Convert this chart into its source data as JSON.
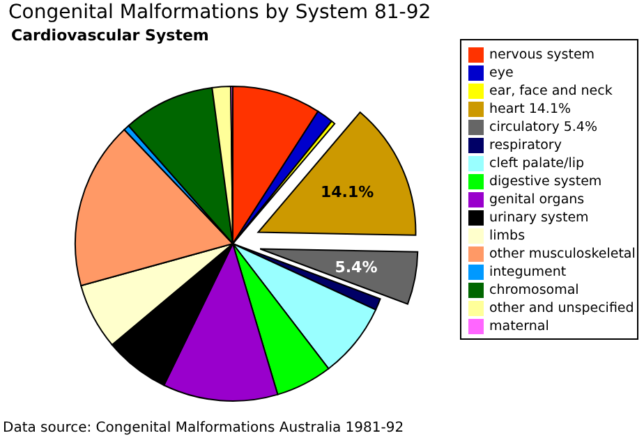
{
  "chart_data": {
    "type": "pie",
    "title": "Congenital Malformations by System 81-92",
    "subtitle": "Cardiovascular System",
    "categories": [
      "nervous system",
      "eye",
      "ear, face and neck",
      "heart  14.1%",
      "circulatory  5.4%",
      "respiratory",
      "cleft palate/lip",
      "digestive system",
      "genital organs",
      "urinary system",
      "limbs",
      "other musculoskeletal",
      "integument",
      "chromosomal",
      "other and unspecified",
      "maternal"
    ],
    "values": [
      9.1,
      1.7,
      0.4,
      14.1,
      5.4,
      1.2,
      7.7,
      5.8,
      11.8,
      6.7,
      6.8,
      17.2,
      0.6,
      9.4,
      1.9,
      0.2
    ],
    "colors": [
      "#ff3300",
      "#0000cc",
      "#ffff00",
      "#cc9900",
      "#666666",
      "#000066",
      "#99ffff",
      "#00ff00",
      "#9900cc",
      "#000000",
      "#ffffcc",
      "#ff9966",
      "#0099ff",
      "#006600",
      "#ffff99",
      "#ff66ff"
    ],
    "value_labels": [
      null,
      null,
      null,
      "14.1%",
      "5.4%",
      null,
      null,
      null,
      null,
      null,
      null,
      null,
      null,
      null,
      null,
      null
    ],
    "legend": "right",
    "annotations": [
      "Data source: Congenital Malformations Australia 1981-92"
    ]
  }
}
